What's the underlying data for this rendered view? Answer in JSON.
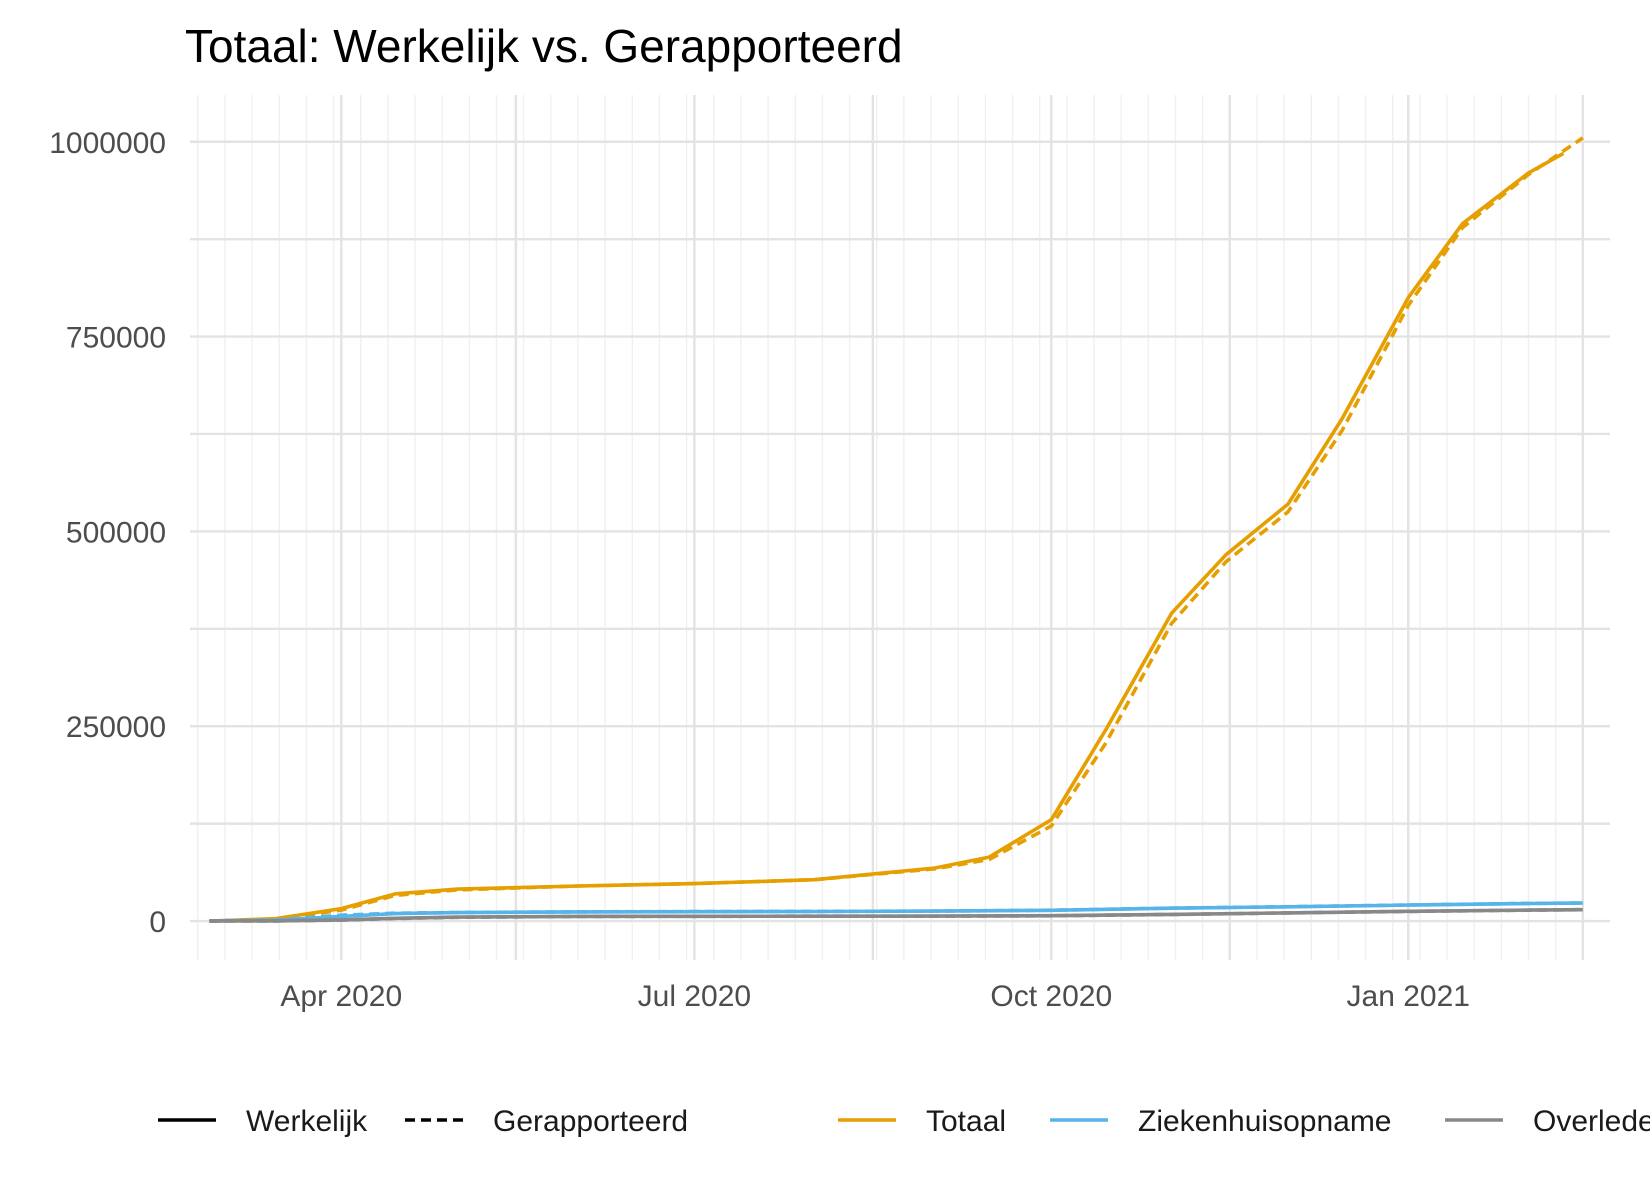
{
  "chart_data": {
    "type": "line",
    "title": "Totaal: Werkelijk vs. Gerapporteerd",
    "xlabel": "",
    "ylabel": "",
    "x_type": "date",
    "xlim": [
      "2020-02-22",
      "2021-02-22"
    ],
    "ylim": [
      -50000,
      1060000
    ],
    "x_ticks": [
      {
        "date": "2020-04-01",
        "label": "Apr 2020"
      },
      {
        "date": "2020-07-01",
        "label": "Jul 2020"
      },
      {
        "date": "2020-10-01",
        "label": "Oct 2020"
      },
      {
        "date": "2021-01-01",
        "label": "Jan 2021"
      }
    ],
    "y_ticks": [
      {
        "value": 0,
        "label": "0"
      },
      {
        "value": 250000,
        "label": "250000"
      },
      {
        "value": 500000,
        "label": "500000"
      },
      {
        "value": 750000,
        "label": "750000"
      },
      {
        "value": 1000000,
        "label": "1000000"
      }
    ],
    "grid": true,
    "legend_position": "bottom",
    "linetype_legend": [
      {
        "label": "Werkelijk",
        "dash": "solid"
      },
      {
        "label": "Gerapporteerd",
        "dash": "dashed"
      }
    ],
    "color_legend": [
      {
        "label": "Totaal",
        "color": "#E69F00"
      },
      {
        "label": "Ziekenhuisopname",
        "color": "#56B4E9"
      },
      {
        "label": "Overleden",
        "color": "#888888"
      }
    ],
    "series": [
      {
        "name": "Totaal",
        "kind": "Werkelijk",
        "color": "#E69F00",
        "dash": "solid",
        "x": [
          "2020-02-27",
          "2020-03-15",
          "2020-04-01",
          "2020-04-15",
          "2020-05-01",
          "2020-06-01",
          "2020-07-01",
          "2020-08-01",
          "2020-09-01",
          "2020-09-15",
          "2020-10-01",
          "2020-10-15",
          "2020-11-01",
          "2020-11-15",
          "2020-12-01",
          "2020-12-15",
          "2021-01-01",
          "2021-01-15",
          "2021-02-01",
          "2021-02-10"
        ],
        "y": [
          0,
          3000,
          16000,
          35000,
          41000,
          45000,
          48000,
          53000,
          68000,
          82000,
          130000,
          245000,
          395000,
          470000,
          535000,
          645000,
          800000,
          895000,
          960000,
          985000
        ]
      },
      {
        "name": "Totaal",
        "kind": "Gerapporteerd",
        "color": "#E69F00",
        "dash": "dashed",
        "x": [
          "2020-02-27",
          "2020-03-15",
          "2020-04-01",
          "2020-04-15",
          "2020-05-01",
          "2020-06-01",
          "2020-07-01",
          "2020-08-01",
          "2020-09-01",
          "2020-09-15",
          "2020-10-01",
          "2020-10-15",
          "2020-11-01",
          "2020-11-15",
          "2020-12-01",
          "2020-12-15",
          "2021-01-01",
          "2021-01-15",
          "2021-02-01",
          "2021-02-15"
        ],
        "y": [
          0,
          2000,
          14000,
          33000,
          40000,
          45000,
          48000,
          53000,
          67000,
          79000,
          122000,
          228000,
          382000,
          461000,
          525000,
          630000,
          790000,
          890000,
          958000,
          1005000
        ]
      },
      {
        "name": "Ziekenhuisopname",
        "kind": "Werkelijk",
        "color": "#56B4E9",
        "dash": "solid",
        "x": [
          "2020-02-27",
          "2020-03-15",
          "2020-04-01",
          "2020-04-15",
          "2020-05-01",
          "2020-06-01",
          "2020-07-01",
          "2020-08-01",
          "2020-09-01",
          "2020-10-01",
          "2020-11-01",
          "2020-12-01",
          "2021-01-01",
          "2021-02-01",
          "2021-02-15"
        ],
        "y": [
          0,
          1000,
          6000,
          9500,
          10800,
          11700,
          12000,
          12300,
          12700,
          13800,
          16500,
          18300,
          20500,
          22500,
          23000
        ]
      },
      {
        "name": "Ziekenhuisopname",
        "kind": "Gerapporteerd",
        "color": "#56B4E9",
        "dash": "dashed",
        "x": [
          "2020-02-27",
          "2020-03-15",
          "2020-04-01",
          "2020-04-15",
          "2020-05-01",
          "2020-06-01",
          "2020-07-01",
          "2020-08-01",
          "2020-09-01",
          "2020-10-01",
          "2020-11-01",
          "2020-12-01",
          "2021-01-01",
          "2021-02-01",
          "2021-02-15"
        ],
        "y": [
          0,
          1500,
          7500,
          10000,
          11000,
          11800,
          12100,
          12400,
          12800,
          13900,
          16600,
          18400,
          20600,
          22600,
          23200
        ]
      },
      {
        "name": "Overleden",
        "kind": "Werkelijk",
        "color": "#888888",
        "dash": "solid",
        "x": [
          "2020-02-27",
          "2020-03-15",
          "2020-04-01",
          "2020-04-15",
          "2020-05-01",
          "2020-06-01",
          "2020-07-01",
          "2020-08-01",
          "2020-09-01",
          "2020-10-01",
          "2020-11-01",
          "2020-12-01",
          "2021-01-01",
          "2021-02-01",
          "2021-02-15"
        ],
        "y": [
          0,
          200,
          1500,
          3500,
          5000,
          5900,
          6100,
          6200,
          6300,
          6800,
          8500,
          10500,
          12500,
          14000,
          14500
        ]
      },
      {
        "name": "Overleden",
        "kind": "Gerapporteerd",
        "color": "#888888",
        "dash": "dashed",
        "x": [
          "2020-02-27",
          "2020-03-15",
          "2020-04-01",
          "2020-04-15",
          "2020-05-01",
          "2020-06-01",
          "2020-07-01",
          "2020-08-01",
          "2020-09-01",
          "2020-10-01",
          "2020-11-01",
          "2020-12-01",
          "2021-01-01",
          "2021-02-01",
          "2021-02-15"
        ],
        "y": [
          0,
          150,
          1200,
          3200,
          4800,
          5800,
          6050,
          6150,
          6250,
          6700,
          8400,
          10400,
          12400,
          13900,
          14600
        ]
      }
    ]
  }
}
